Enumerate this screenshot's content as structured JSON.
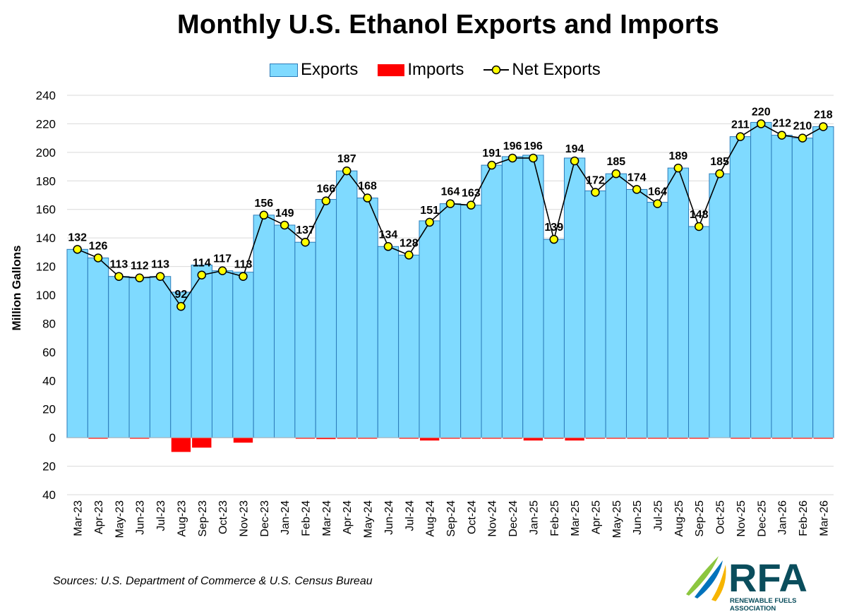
{
  "chart_data": {
    "type": "bar",
    "title": "Monthly U.S. Ethanol Exports and Imports",
    "ylabel": "Million Gallons",
    "ylim": [
      -40,
      240
    ],
    "yticks": [
      {
        "value": 240,
        "label": "240"
      },
      {
        "value": 220,
        "label": "220"
      },
      {
        "value": 200,
        "label": "200"
      },
      {
        "value": 180,
        "label": "180"
      },
      {
        "value": 160,
        "label": "160"
      },
      {
        "value": 140,
        "label": "140"
      },
      {
        "value": 120,
        "label": "120"
      },
      {
        "value": 100,
        "label": "100"
      },
      {
        "value": 80,
        "label": "80"
      },
      {
        "value": 60,
        "label": "60"
      },
      {
        "value": 40,
        "label": "40"
      },
      {
        "value": 20,
        "label": "20"
      },
      {
        "value": 0,
        "label": "0"
      },
      {
        "value": -20,
        "label": "20"
      },
      {
        "value": -40,
        "label": "40"
      }
    ],
    "grid": true,
    "legend_position": "top",
    "categories": [
      "Mar-23",
      "Apr-23",
      "May-23",
      "Jun-23",
      "Jul-23",
      "Aug-23",
      "Sep-23",
      "Oct-23",
      "Nov-23",
      "Dec-23",
      "Jan-24",
      "Feb-24",
      "Mar-24",
      "Apr-24",
      "May-24",
      "Jun-24",
      "Jul-24",
      "Aug-24",
      "Sep-24",
      "Oct-24",
      "Nov-24",
      "Dec-24",
      "Jan-25",
      "Feb-25",
      "Mar-25",
      "Apr-25",
      "May-25",
      "Jun-25",
      "Jul-25",
      "Aug-25",
      "Sep-25",
      "Oct-25",
      "Nov-25",
      "Dec-25",
      "Jan-26",
      "Feb-26",
      "Mar-26"
    ],
    "series": [
      {
        "name": "Exports",
        "type": "bar",
        "color": "#7fdaff",
        "values": [
          132,
          126,
          113,
          112,
          113,
          102,
          121,
          117,
          116,
          156,
          149,
          137,
          167,
          187,
          168,
          134,
          128,
          152,
          164,
          163,
          191,
          197,
          198,
          139,
          196,
          173,
          185,
          174,
          165,
          189,
          148,
          185,
          211,
          221,
          212,
          210,
          218
        ]
      },
      {
        "name": "Imports",
        "type": "bar",
        "color": "#ff0000",
        "values": [
          0,
          -0.4,
          0,
          -0.4,
          0,
          -10,
          -7,
          0,
          -3.5,
          0,
          0,
          -0.4,
          -1,
          -0.4,
          -0.4,
          0,
          -0.4,
          -2,
          -0.4,
          -0.4,
          -0.4,
          -0.4,
          -2,
          -0.4,
          -2,
          -0.4,
          -0.4,
          -0.4,
          -0.4,
          -0.4,
          -0.4,
          0,
          -0.4,
          -0.4,
          -0.4,
          -0.4,
          -0.4
        ]
      },
      {
        "name": "Net Exports",
        "type": "line",
        "color": "#000000",
        "marker_color": "#ffff00",
        "values": [
          132,
          126,
          113,
          112,
          113,
          92,
          114,
          117,
          113,
          156,
          149,
          137,
          166,
          187,
          168,
          134,
          128,
          151,
          164,
          163,
          191,
          196,
          196,
          139,
          194,
          172,
          185,
          174,
          164,
          189,
          148,
          185,
          211,
          220,
          212,
          210,
          218
        ],
        "labels": [
          "132",
          "126",
          "113",
          "112",
          "113",
          "92",
          "114",
          "117",
          "113",
          "156",
          "149",
          "137",
          "166",
          "187",
          "168",
          "134",
          "128",
          "151",
          "164",
          "163",
          "191",
          "196",
          "196",
          "139",
          "194",
          "172",
          "185",
          "174",
          "164",
          "189",
          "148",
          "185",
          "211",
          "220",
          "212",
          "210",
          "218"
        ]
      }
    ]
  },
  "source_note": "Sources: U.S. Department of Commerce & U.S. Census Bureau",
  "logo": {
    "text": "RFA",
    "subtitle_line1": "RENEWABLE FUELS",
    "subtitle_line2": "ASSOCIATION"
  }
}
